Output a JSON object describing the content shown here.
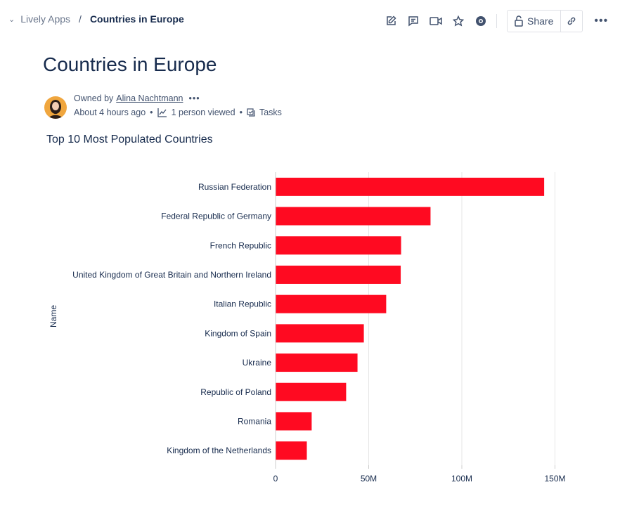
{
  "breadcrumb": {
    "space": "Lively Apps",
    "current": "Countries in Europe"
  },
  "toolbar": {
    "icons": [
      "edit-icon",
      "comment-icon",
      "video-icon",
      "star-icon",
      "watch-icon"
    ],
    "share_label": "Share",
    "link_icon": "link-icon",
    "more_icon": "more-icon"
  },
  "page": {
    "title": "Countries in Europe"
  },
  "meta": {
    "owned_by": "Owned by",
    "owner": "Alina Nachtmann",
    "time": "About 4 hours ago",
    "views": "1 person viewed",
    "tasks": "Tasks"
  },
  "chart_data": {
    "type": "bar",
    "orientation": "horizontal",
    "title": "Top 10 Most Populated Countries",
    "ylabel": "Name",
    "xlabel": "",
    "categories": [
      "Russian Federation",
      "Federal Republic of Germany",
      "French Republic",
      "United Kingdom of Great Britain and Northern Ireland",
      "Italian Republic",
      "Kingdom of Spain",
      "Ukraine",
      "Republic of Poland",
      "Romania",
      "Kingdom of the Netherlands"
    ],
    "values": [
      144000000,
      83000000,
      67200000,
      67000000,
      59200000,
      47200000,
      43800000,
      37700000,
      19200000,
      16600000
    ],
    "xlim": [
      0,
      155000000
    ],
    "xticks": [
      0,
      50000000,
      100000000,
      150000000
    ],
    "xtick_labels": [
      "0",
      "50M",
      "100M",
      "150M"
    ],
    "grid": true,
    "bar_color": "#ff0a21"
  }
}
